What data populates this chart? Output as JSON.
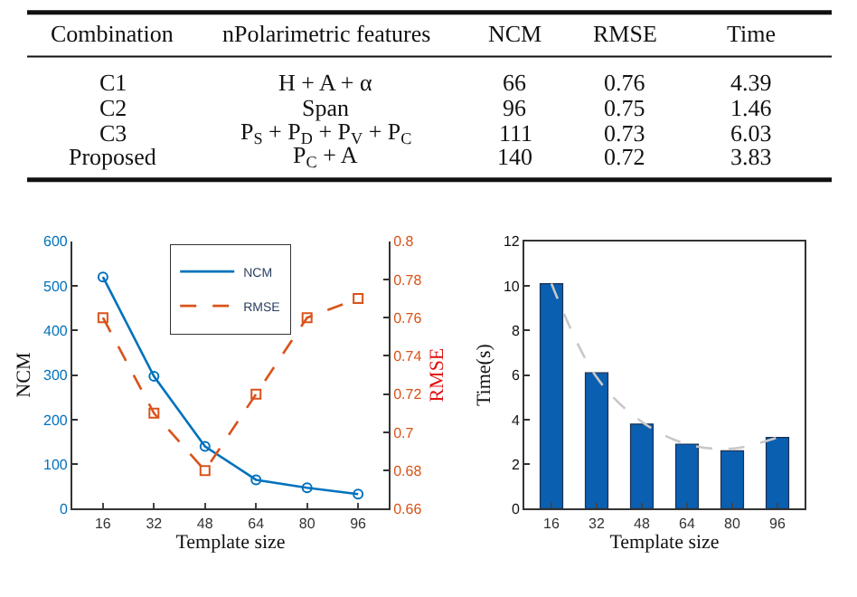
{
  "chart_data": [
    {
      "type": "other",
      "annotations": [
        "Combination",
        "nPolarimetric features",
        "NCM",
        "RMSE",
        "Time",
        "C1",
        "H + A + α",
        "66",
        "0.76",
        "4.39",
        "C2",
        "Span",
        "96",
        "0.75",
        "1.46",
        "C3",
        "P$_{S}$ + P$_{D}$ + P$_{V}$ + P$_{C}$",
        "111",
        "0.73",
        "6.03",
        "Proposed",
        "P$_{C}$ + A",
        "140",
        "0.72",
        "3.83"
      ]
    },
    {
      "type": "line",
      "categories": [
        "16",
        "32",
        "48",
        "64",
        "80",
        "96"
      ],
      "xlabel": "Template size",
      "ylabel": "NCM",
      "y2label": "RMSE",
      "ylim": [
        0,
        600
      ],
      "yticks": [
        0,
        100,
        200,
        300,
        400,
        500,
        600
      ],
      "y2lim": [
        0.66,
        0.8
      ],
      "y2ticks": [
        0.66,
        0.68,
        0.7,
        0.72,
        0.74,
        0.76,
        0.78,
        0.8
      ],
      "legend": "top",
      "series": [
        {
          "name": "NCM",
          "color": "#0072bd",
          "values": [
            520,
            297,
            140,
            65,
            47,
            33
          ],
          "marker": "circle",
          "line_style": "solid"
        },
        {
          "name": "RMSE",
          "color": "#d95319",
          "values": [
            0.76,
            0.71,
            0.68,
            0.72,
            0.76,
            0.77
          ],
          "axis": "y2",
          "marker": "square",
          "line_style": "dashed"
        }
      ]
    },
    {
      "type": "bar",
      "categories": [
        "16",
        "32",
        "48",
        "64",
        "80",
        "96"
      ],
      "xlabel": "Template size",
      "ylabel": "Time(s)",
      "ylim": [
        0,
        12
      ],
      "yticks": [
        0,
        2,
        4,
        6,
        8,
        10,
        12
      ],
      "series": [
        {
          "color": "#0a5fb0",
          "values": [
            10.1,
            6.1,
            3.8,
            2.9,
            2.6,
            3.2
          ]
        },
        {
          "type": "line",
          "color": "#c8c8c8",
          "values": [
            10.1,
            5.9,
            3.9,
            2.9,
            2.7,
            3.2
          ],
          "marker": "none",
          "line_style": "dashed"
        }
      ]
    }
  ]
}
